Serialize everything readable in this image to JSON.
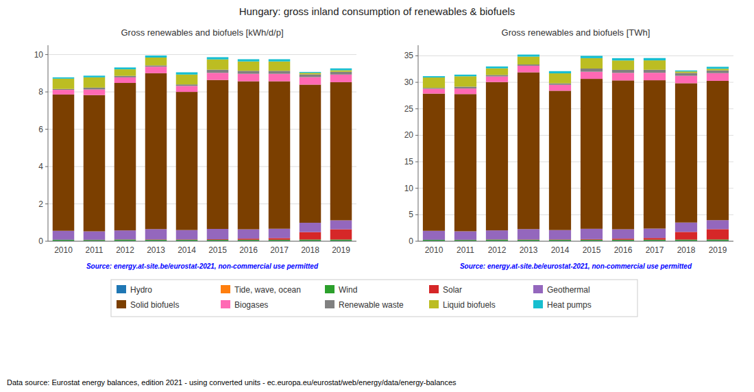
{
  "title": "Hungary: gross inland consumption of renewables & biofuels",
  "annotations": [
    "Data source: Eurostat energy balances, edition 2021 - using converted units - ec.europa.eu/eurostat/web/energy/data/energy-balances"
  ],
  "chart_data": [
    {
      "type": "bar",
      "stacked": true,
      "grid": true,
      "legend": "bottom",
      "title": "Gross renewables and biofuels [kWh/d/p]",
      "annotations": [
        "Source: energy.at-site.be/eurostat-2021, non-commercial use permitted"
      ],
      "categories": [
        2010,
        2011,
        2012,
        2013,
        2014,
        2015,
        2016,
        2017,
        2018,
        2019
      ],
      "ylim": [
        0,
        10.5
      ],
      "yticks": [
        0,
        2,
        4,
        6,
        8,
        10
      ],
      "series": [
        {
          "name": "Hydro",
          "color": "#1f77b4",
          "values": [
            0.02,
            0.02,
            0.02,
            0.02,
            0.02,
            0.02,
            0.02,
            0.02,
            0.02,
            0.02
          ]
        },
        {
          "name": "Tide, wave, ocean",
          "color": "#ff7f0e",
          "values": [
            0.0,
            0.0,
            0.0,
            0.0,
            0.0,
            0.0,
            0.0,
            0.0,
            0.0,
            0.0
          ]
        },
        {
          "name": "Wind",
          "color": "#2ca02c",
          "values": [
            0.06,
            0.05,
            0.07,
            0.06,
            0.06,
            0.06,
            0.06,
            0.06,
            0.07,
            0.07
          ]
        },
        {
          "name": "Solar",
          "color": "#d62728",
          "values": [
            0.0,
            0.01,
            0.01,
            0.02,
            0.02,
            0.03,
            0.06,
            0.09,
            0.4,
            0.55
          ]
        },
        {
          "name": "Geothermal",
          "color": "#9467bd",
          "values": [
            0.48,
            0.45,
            0.48,
            0.55,
            0.5,
            0.55,
            0.5,
            0.5,
            0.5,
            0.48
          ]
        },
        {
          "name": "Solid biofuels",
          "color": "#7B3F00",
          "values": [
            7.3,
            7.3,
            7.9,
            8.35,
            7.4,
            7.98,
            7.93,
            7.9,
            7.4,
            7.4
          ]
        },
        {
          "name": "Biogases",
          "color": "#ff69b4",
          "values": [
            0.25,
            0.3,
            0.3,
            0.35,
            0.32,
            0.38,
            0.4,
            0.4,
            0.4,
            0.41
          ]
        },
        {
          "name": "Renewable waste",
          "color": "#808080",
          "values": [
            0.05,
            0.1,
            0.08,
            0.07,
            0.08,
            0.17,
            0.16,
            0.16,
            0.15,
            0.15
          ]
        },
        {
          "name": "Liquid biofuels",
          "color": "#bcbd22",
          "values": [
            0.55,
            0.55,
            0.35,
            0.42,
            0.53,
            0.55,
            0.5,
            0.5,
            0.08,
            0.08
          ]
        },
        {
          "name": "Heat pumps",
          "color": "#17becf",
          "values": [
            0.07,
            0.09,
            0.1,
            0.11,
            0.12,
            0.12,
            0.12,
            0.12,
            0.05,
            0.1
          ]
        }
      ]
    },
    {
      "type": "bar",
      "stacked": true,
      "grid": true,
      "title": "Gross renewables and biofuels [TWh]",
      "annotations": [
        "Source: energy.at-site.be/eurostat-2021, non-commercial use permitted"
      ],
      "categories": [
        2010,
        2011,
        2012,
        2013,
        2014,
        2015,
        2016,
        2017,
        2018,
        2019
      ],
      "ylim": [
        0,
        37
      ],
      "yticks": [
        0,
        5,
        10,
        15,
        20,
        25,
        30,
        35
      ],
      "series": [
        {
          "name": "Hydro",
          "color": "#1f77b4",
          "values": [
            0.07,
            0.07,
            0.07,
            0.07,
            0.07,
            0.07,
            0.07,
            0.07,
            0.07,
            0.07
          ]
        },
        {
          "name": "Tide, wave, ocean",
          "color": "#ff7f0e",
          "values": [
            0.0,
            0.0,
            0.0,
            0.0,
            0.0,
            0.0,
            0.0,
            0.0,
            0.0,
            0.0
          ]
        },
        {
          "name": "Wind",
          "color": "#2ca02c",
          "values": [
            0.2,
            0.18,
            0.24,
            0.21,
            0.21,
            0.22,
            0.21,
            0.22,
            0.24,
            0.26
          ]
        },
        {
          "name": "Solar",
          "color": "#d62728",
          "values": [
            0.0,
            0.03,
            0.04,
            0.06,
            0.07,
            0.11,
            0.21,
            0.33,
            1.45,
            1.95
          ]
        },
        {
          "name": "Geothermal",
          "color": "#9467bd",
          "values": [
            1.7,
            1.6,
            1.7,
            1.95,
            1.76,
            1.95,
            1.77,
            1.77,
            1.77,
            1.7
          ]
        },
        {
          "name": "Solid biofuels",
          "color": "#7B3F00",
          "values": [
            25.9,
            25.9,
            28.0,
            29.6,
            26.3,
            28.3,
            28.1,
            28.0,
            26.3,
            26.3
          ]
        },
        {
          "name": "Biogases",
          "color": "#ff69b4",
          "values": [
            0.9,
            1.05,
            1.06,
            1.24,
            1.12,
            1.35,
            1.42,
            1.41,
            1.4,
            1.45
          ]
        },
        {
          "name": "Renewable waste",
          "color": "#808080",
          "values": [
            0.18,
            0.35,
            0.28,
            0.24,
            0.28,
            0.6,
            0.57,
            0.57,
            0.54,
            0.53
          ]
        },
        {
          "name": "Liquid biofuels",
          "color": "#bcbd22",
          "values": [
            1.96,
            1.96,
            1.25,
            1.48,
            1.88,
            1.96,
            1.77,
            1.77,
            0.28,
            0.3
          ]
        },
        {
          "name": "Heat pumps",
          "color": "#17becf",
          "values": [
            0.25,
            0.31,
            0.35,
            0.39,
            0.42,
            0.44,
            0.44,
            0.44,
            0.19,
            0.37
          ]
        }
      ]
    }
  ]
}
